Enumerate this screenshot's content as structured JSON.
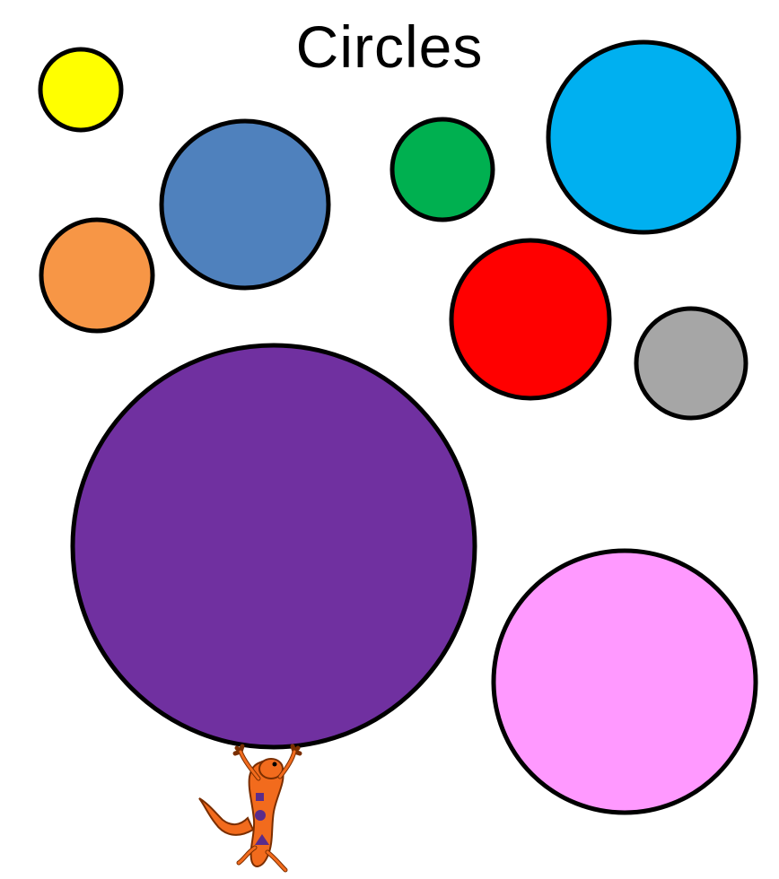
{
  "title": "Circles",
  "circles": [
    {
      "name": "yellow",
      "color": "#FFFF00"
    },
    {
      "name": "steel-blue",
      "color": "#4F81BD"
    },
    {
      "name": "orange",
      "color": "#F79646"
    },
    {
      "name": "green",
      "color": "#00B050"
    },
    {
      "name": "sky-blue",
      "color": "#00B0F0"
    },
    {
      "name": "red",
      "color": "#FF0000"
    },
    {
      "name": "gray",
      "color": "#A6A6A6"
    },
    {
      "name": "purple",
      "color": "#7030A0"
    },
    {
      "name": "pink",
      "color": "#FF99FF"
    }
  ],
  "mascot": {
    "icon": "salamander-icon",
    "body_color": "#F26B1D",
    "spot_color": "#5B2C8A"
  }
}
